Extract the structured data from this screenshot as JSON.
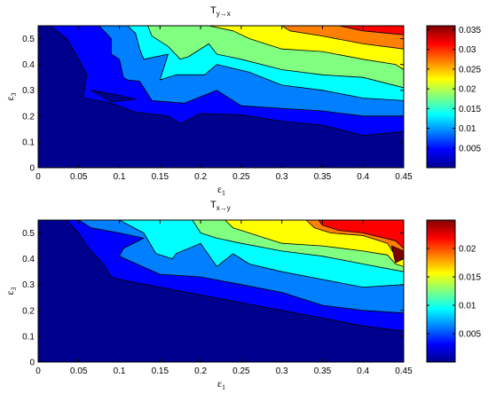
{
  "colors": {
    "jet": [
      "#00008f",
      "#0000ff",
      "#0080ff",
      "#00ffff",
      "#80ff80",
      "#ffff00",
      "#ff8000",
      "#ff0000",
      "#800000"
    ],
    "background": "#ffffff",
    "contour_line": "#000000"
  },
  "chart_data": [
    {
      "type": "heatmap",
      "subtype": "filled-contour",
      "title": "T",
      "title_sub": "y→x",
      "xlabel": "ε",
      "xlabel_sub": "1",
      "ylabel": "ε",
      "ylabel_sub": "3",
      "xlim": [
        0,
        0.45
      ],
      "ylim": [
        0,
        0.55
      ],
      "x_ticks": [
        0,
        0.05,
        0.1,
        0.15,
        0.2,
        0.25,
        0.3,
        0.35,
        0.4,
        0.45
      ],
      "x_tick_labels": [
        "0",
        "0.05",
        "0.1",
        "0.15",
        "0.2",
        "0.25",
        "0.3",
        "0.35",
        "0.4",
        "0.45"
      ],
      "y_ticks": [
        0,
        0.1,
        0.2,
        0.3,
        0.4,
        0.5
      ],
      "y_tick_labels": [
        "0",
        "0.1",
        "0.2",
        "0.3",
        "0.4",
        "0.5"
      ],
      "colorbar": {
        "range": [
          0,
          0.036
        ],
        "ticks": [
          0.005,
          0.01,
          0.015,
          0.02,
          0.025,
          0.03,
          0.035
        ],
        "tick_labels": [
          "0.005",
          "0.01",
          "0.015",
          "0.02",
          "0.025",
          "0.03",
          "0.035"
        ]
      },
      "regions": [
        {
          "level": 0,
          "points": [
            [
              0,
              0
            ],
            [
              0.45,
              0
            ],
            [
              0.45,
              0.55
            ],
            [
              0,
              0.55
            ]
          ]
        },
        {
          "level": 1,
          "points": [
            [
              0.015,
              0.55
            ],
            [
              0.035,
              0.5
            ],
            [
              0.05,
              0.42
            ],
            [
              0.06,
              0.36
            ],
            [
              0.055,
              0.27
            ],
            [
              0.09,
              0.25
            ],
            [
              0.12,
              0.215
            ],
            [
              0.16,
              0.2
            ],
            [
              0.175,
              0.17
            ],
            [
              0.2,
              0.21
            ],
            [
              0.25,
              0.205
            ],
            [
              0.3,
              0.18
            ],
            [
              0.35,
              0.165
            ],
            [
              0.4,
              0.125
            ],
            [
              0.45,
              0.14
            ],
            [
              0.45,
              0.55
            ]
          ]
        },
        {
          "level": 2,
          "points": [
            [
              0.075,
              0.55
            ],
            [
              0.09,
              0.5
            ],
            [
              0.09,
              0.44
            ],
            [
              0.1,
              0.42
            ],
            [
              0.105,
              0.35
            ],
            [
              0.11,
              0.34
            ],
            [
              0.125,
              0.335
            ],
            [
              0.14,
              0.26
            ],
            [
              0.18,
              0.25
            ],
            [
              0.22,
              0.3
            ],
            [
              0.25,
              0.24
            ],
            [
              0.3,
              0.23
            ],
            [
              0.35,
              0.22
            ],
            [
              0.4,
              0.2
            ],
            [
              0.45,
              0.2
            ],
            [
              0.45,
              0.55
            ]
          ]
        },
        {
          "level": 3,
          "points": [
            [
              0.11,
              0.55
            ],
            [
              0.12,
              0.52
            ],
            [
              0.125,
              0.46
            ],
            [
              0.13,
              0.42
            ],
            [
              0.16,
              0.44
            ],
            [
              0.15,
              0.34
            ],
            [
              0.17,
              0.36
            ],
            [
              0.205,
              0.36
            ],
            [
              0.22,
              0.4
            ],
            [
              0.26,
              0.37
            ],
            [
              0.3,
              0.32
            ],
            [
              0.35,
              0.3
            ],
            [
              0.4,
              0.27
            ],
            [
              0.45,
              0.26
            ],
            [
              0.45,
              0.55
            ]
          ]
        },
        {
          "level": 4,
          "points": [
            [
              0.135,
              0.55
            ],
            [
              0.14,
              0.51
            ],
            [
              0.16,
              0.47
            ],
            [
              0.175,
              0.42
            ],
            [
              0.185,
              0.43
            ],
            [
              0.21,
              0.48
            ],
            [
              0.22,
              0.44
            ],
            [
              0.25,
              0.42
            ],
            [
              0.3,
              0.38
            ],
            [
              0.35,
              0.36
            ],
            [
              0.4,
              0.35
            ],
            [
              0.45,
              0.31
            ],
            [
              0.45,
              0.55
            ]
          ]
        },
        {
          "level": 5,
          "points": [
            [
              0.21,
              0.55
            ],
            [
              0.24,
              0.53
            ],
            [
              0.26,
              0.5
            ],
            [
              0.3,
              0.46
            ],
            [
              0.35,
              0.45
            ],
            [
              0.4,
              0.42
            ],
            [
              0.44,
              0.4
            ],
            [
              0.45,
              0.38
            ],
            [
              0.45,
              0.55
            ]
          ]
        },
        {
          "level": 6,
          "points": [
            [
              0.3,
              0.55
            ],
            [
              0.31,
              0.53
            ],
            [
              0.35,
              0.51
            ],
            [
              0.4,
              0.48
            ],
            [
              0.45,
              0.46
            ],
            [
              0.45,
              0.55
            ]
          ]
        },
        {
          "level": 7,
          "points": [
            [
              0.37,
              0.55
            ],
            [
              0.4,
              0.53
            ],
            [
              0.45,
              0.515
            ],
            [
              0.45,
              0.55
            ]
          ]
        },
        {
          "level": 0,
          "points": [
            [
              0.065,
              0.3
            ],
            [
              0.1,
              0.28
            ],
            [
              0.12,
              0.265
            ],
            [
              0.09,
              0.255
            ]
          ]
        }
      ]
    },
    {
      "type": "heatmap",
      "subtype": "filled-contour",
      "title": "T",
      "title_sub": "x→y",
      "xlabel": "ε",
      "xlabel_sub": "1",
      "ylabel": "ε",
      "ylabel_sub": "3",
      "xlim": [
        0,
        0.45
      ],
      "ylim": [
        0,
        0.55
      ],
      "x_ticks": [
        0,
        0.05,
        0.1,
        0.15,
        0.2,
        0.25,
        0.3,
        0.35,
        0.4,
        0.45
      ],
      "x_tick_labels": [
        "0",
        "0.05",
        "0.1",
        "0.15",
        "0.2",
        "0.25",
        "0.3",
        "0.35",
        "0.4",
        "0.45"
      ],
      "y_ticks": [
        0,
        0.1,
        0.2,
        0.3,
        0.4,
        0.5
      ],
      "y_tick_labels": [
        "0",
        "0.1",
        "0.2",
        "0.3",
        "0.4",
        "0.5"
      ],
      "colorbar": {
        "range": [
          0,
          0.025
        ],
        "ticks": [
          0.005,
          0.01,
          0.015,
          0.02
        ],
        "tick_labels": [
          "0.005",
          "0.01",
          "0.015",
          "0.02"
        ]
      },
      "regions": [
        {
          "level": 0,
          "points": [
            [
              0,
              0
            ],
            [
              0.45,
              0
            ],
            [
              0.45,
              0.55
            ],
            [
              0,
              0.55
            ]
          ]
        },
        {
          "level": 1,
          "points": [
            [
              0.035,
              0.55
            ],
            [
              0.05,
              0.5
            ],
            [
              0.06,
              0.45
            ],
            [
              0.08,
              0.38
            ],
            [
              0.09,
              0.33
            ],
            [
              0.1,
              0.32
            ],
            [
              0.15,
              0.29
            ],
            [
              0.2,
              0.26
            ],
            [
              0.25,
              0.23
            ],
            [
              0.3,
              0.2
            ],
            [
              0.35,
              0.17
            ],
            [
              0.4,
              0.14
            ],
            [
              0.45,
              0.12
            ],
            [
              0.45,
              0.55
            ]
          ]
        },
        {
          "level": 2,
          "points": [
            [
              0.05,
              0.55
            ],
            [
              0.065,
              0.52
            ],
            [
              0.1,
              0.5
            ],
            [
              0.13,
              0.48
            ],
            [
              0.105,
              0.44
            ],
            [
              0.1,
              0.41
            ],
            [
              0.15,
              0.34
            ],
            [
              0.2,
              0.33
            ],
            [
              0.25,
              0.3
            ],
            [
              0.3,
              0.27
            ],
            [
              0.35,
              0.22
            ],
            [
              0.4,
              0.2
            ],
            [
              0.45,
              0.19
            ],
            [
              0.45,
              0.55
            ]
          ]
        },
        {
          "level": 3,
          "points": [
            [
              0.1,
              0.55
            ],
            [
              0.13,
              0.5
            ],
            [
              0.145,
              0.42
            ],
            [
              0.165,
              0.4
            ],
            [
              0.17,
              0.42
            ],
            [
              0.2,
              0.46
            ],
            [
              0.22,
              0.37
            ],
            [
              0.24,
              0.42
            ],
            [
              0.25,
              0.4
            ],
            [
              0.26,
              0.38
            ],
            [
              0.3,
              0.35
            ],
            [
              0.35,
              0.32
            ],
            [
              0.4,
              0.29
            ],
            [
              0.45,
              0.3
            ],
            [
              0.45,
              0.55
            ]
          ]
        },
        {
          "level": 4,
          "points": [
            [
              0.19,
              0.55
            ],
            [
              0.2,
              0.5
            ],
            [
              0.22,
              0.48
            ],
            [
              0.25,
              0.46
            ],
            [
              0.3,
              0.43
            ],
            [
              0.35,
              0.41
            ],
            [
              0.4,
              0.38
            ],
            [
              0.45,
              0.35
            ],
            [
              0.45,
              0.55
            ]
          ]
        },
        {
          "level": 5,
          "points": [
            [
              0.23,
              0.55
            ],
            [
              0.24,
              0.52
            ],
            [
              0.27,
              0.49
            ],
            [
              0.3,
              0.46
            ],
            [
              0.35,
              0.45
            ],
            [
              0.4,
              0.43
            ],
            [
              0.43,
              0.415
            ],
            [
              0.44,
              0.38
            ],
            [
              0.45,
              0.37
            ],
            [
              0.45,
              0.55
            ]
          ]
        },
        {
          "level": 6,
          "points": [
            [
              0.33,
              0.55
            ],
            [
              0.34,
              0.52
            ],
            [
              0.36,
              0.5
            ],
            [
              0.4,
              0.49
            ],
            [
              0.43,
              0.46
            ],
            [
              0.44,
              0.41
            ],
            [
              0.45,
              0.4
            ],
            [
              0.45,
              0.55
            ]
          ]
        },
        {
          "level": 7,
          "points": [
            [
              0.345,
              0.55
            ],
            [
              0.35,
              0.53
            ],
            [
              0.37,
              0.51
            ],
            [
              0.4,
              0.5
            ],
            [
              0.44,
              0.47
            ],
            [
              0.45,
              0.44
            ],
            [
              0.45,
              0.55
            ]
          ]
        },
        {
          "level": 8,
          "points": [
            [
              0.435,
              0.45
            ],
            [
              0.45,
              0.43
            ],
            [
              0.45,
              0.4
            ],
            [
              0.44,
              0.385
            ]
          ]
        }
      ]
    }
  ]
}
